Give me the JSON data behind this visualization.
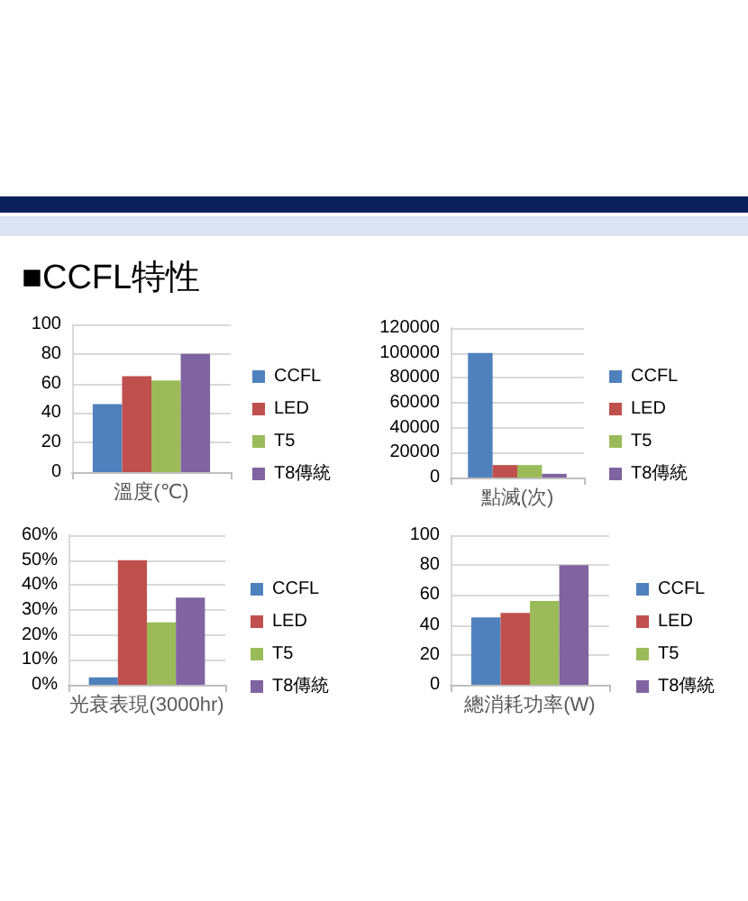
{
  "chart_data": [
    {
      "type": "bar",
      "title": "■CCFL特性",
      "categories": [
        "溫度(℃)"
      ],
      "series": [
        {
          "name": "CCFL",
          "color": "#4f81bd",
          "values": [
            46
          ]
        },
        {
          "name": "LED",
          "color": "#c0504d",
          "values": [
            65
          ]
        },
        {
          "name": "T5",
          "color": "#9bbb59",
          "values": [
            62
          ]
        },
        {
          "name": "T8傳統",
          "color": "#8064a2",
          "values": [
            80
          ]
        }
      ],
      "ylim": [
        0,
        100
      ],
      "yticks": [
        0,
        20,
        40,
        60,
        80,
        100
      ],
      "grid": "y",
      "legend": "right"
    },
    {
      "type": "bar",
      "categories": [
        "點滅(次)"
      ],
      "series": [
        {
          "name": "CCFL",
          "color": "#4f81bd",
          "values": [
            100000
          ]
        },
        {
          "name": "LED",
          "color": "#c0504d",
          "values": [
            10000
          ]
        },
        {
          "name": "T5",
          "color": "#9bbb59",
          "values": [
            10000
          ]
        },
        {
          "name": "T8傳統",
          "color": "#8064a2",
          "values": [
            3000
          ]
        }
      ],
      "ylim": [
        0,
        120000
      ],
      "yticks": [
        0,
        20000,
        40000,
        60000,
        80000,
        100000,
        120000
      ],
      "grid": "y",
      "legend": "right"
    },
    {
      "type": "bar",
      "categories": [
        "光衰表現(3000hr)"
      ],
      "series": [
        {
          "name": "CCFL",
          "color": "#4f81bd",
          "values": [
            3
          ]
        },
        {
          "name": "LED",
          "color": "#c0504d",
          "values": [
            50
          ]
        },
        {
          "name": "T5",
          "color": "#9bbb59",
          "values": [
            25
          ]
        },
        {
          "name": "T8傳統",
          "color": "#8064a2",
          "values": [
            35
          ]
        }
      ],
      "ylim": [
        0,
        60
      ],
      "yticks": [
        {
          "value": 0,
          "label": "0%"
        },
        {
          "value": 10,
          "label": "10%"
        },
        {
          "value": 20,
          "label": "20%"
        },
        {
          "value": 30,
          "label": "30%"
        },
        {
          "value": 40,
          "label": "40%"
        },
        {
          "value": 50,
          "label": "50%"
        },
        {
          "value": 60,
          "label": "60%"
        }
      ],
      "grid": "y",
      "legend": "right"
    },
    {
      "type": "bar",
      "categories": [
        "總消耗功率(W)"
      ],
      "series": [
        {
          "name": "CCFL",
          "color": "#4f81bd",
          "values": [
            45
          ]
        },
        {
          "name": "LED",
          "color": "#c0504d",
          "values": [
            48
          ]
        },
        {
          "name": "T5",
          "color": "#9bbb59",
          "values": [
            56
          ]
        },
        {
          "name": "T8傳統",
          "color": "#8064a2",
          "values": [
            80
          ]
        }
      ],
      "ylim": [
        0,
        100
      ],
      "yticks": [
        0,
        20,
        40,
        60,
        80,
        100
      ],
      "grid": "y",
      "legend": "right"
    }
  ]
}
